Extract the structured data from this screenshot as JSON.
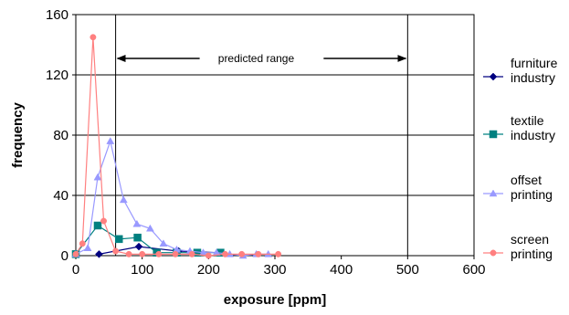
{
  "chart_data": {
    "type": "line",
    "xlabel": "exposure [ppm]",
    "ylabel": "frequency",
    "xlim": [
      0,
      600
    ],
    "ylim": [
      0,
      160
    ],
    "x_ticks": [
      0,
      100,
      200,
      300,
      400,
      500,
      600
    ],
    "y_ticks": [
      0,
      40,
      80,
      120,
      160
    ],
    "grid": "horizontal",
    "legend_position": "right",
    "annotation": {
      "text": "predicted range",
      "x_range": [
        60,
        500
      ]
    },
    "series": [
      {
        "name": "furniture industry",
        "name_lines": [
          "furniture",
          "industry"
        ],
        "color": "#000080",
        "marker": "diamond",
        "points": [
          [
            35,
            1
          ],
          [
            95,
            6
          ],
          [
            155,
            3
          ],
          [
            215,
            2
          ]
        ]
      },
      {
        "name": "textile industry",
        "name_lines": [
          "textile",
          "industry"
        ],
        "color": "#008080",
        "marker": "square",
        "points": [
          [
            0,
            1
          ],
          [
            33,
            20
          ],
          [
            65,
            11
          ],
          [
            93,
            12
          ],
          [
            122,
            2
          ],
          [
            152,
            2
          ],
          [
            183,
            2
          ],
          [
            218,
            2
          ]
        ]
      },
      {
        "name": "offset printing",
        "name_lines": [
          "offset",
          "printing"
        ],
        "color": "#9999ff",
        "marker": "triangle",
        "points": [
          [
            0,
            1
          ],
          [
            18,
            5
          ],
          [
            33,
            52
          ],
          [
            52,
            76
          ],
          [
            72,
            37
          ],
          [
            92,
            21
          ],
          [
            112,
            18
          ],
          [
            132,
            8
          ],
          [
            152,
            4
          ],
          [
            172,
            3
          ],
          [
            192,
            2
          ],
          [
            212,
            2
          ],
          [
            232,
            1
          ],
          [
            252,
            0
          ],
          [
            272,
            1
          ],
          [
            290,
            1
          ]
        ]
      },
      {
        "name": "screen printing",
        "name_lines": [
          "screen",
          "printing"
        ],
        "color": "#ff8080",
        "marker": "circle",
        "points": [
          [
            0,
            1
          ],
          [
            10,
            8
          ],
          [
            26,
            145
          ],
          [
            42,
            23
          ],
          [
            60,
            3
          ],
          [
            80,
            1
          ],
          [
            100,
            1
          ],
          [
            125,
            1
          ],
          [
            150,
            1
          ],
          [
            175,
            1
          ],
          [
            200,
            0
          ],
          [
            225,
            1
          ],
          [
            250,
            1
          ],
          [
            275,
            1
          ],
          [
            305,
            1
          ]
        ]
      }
    ]
  }
}
